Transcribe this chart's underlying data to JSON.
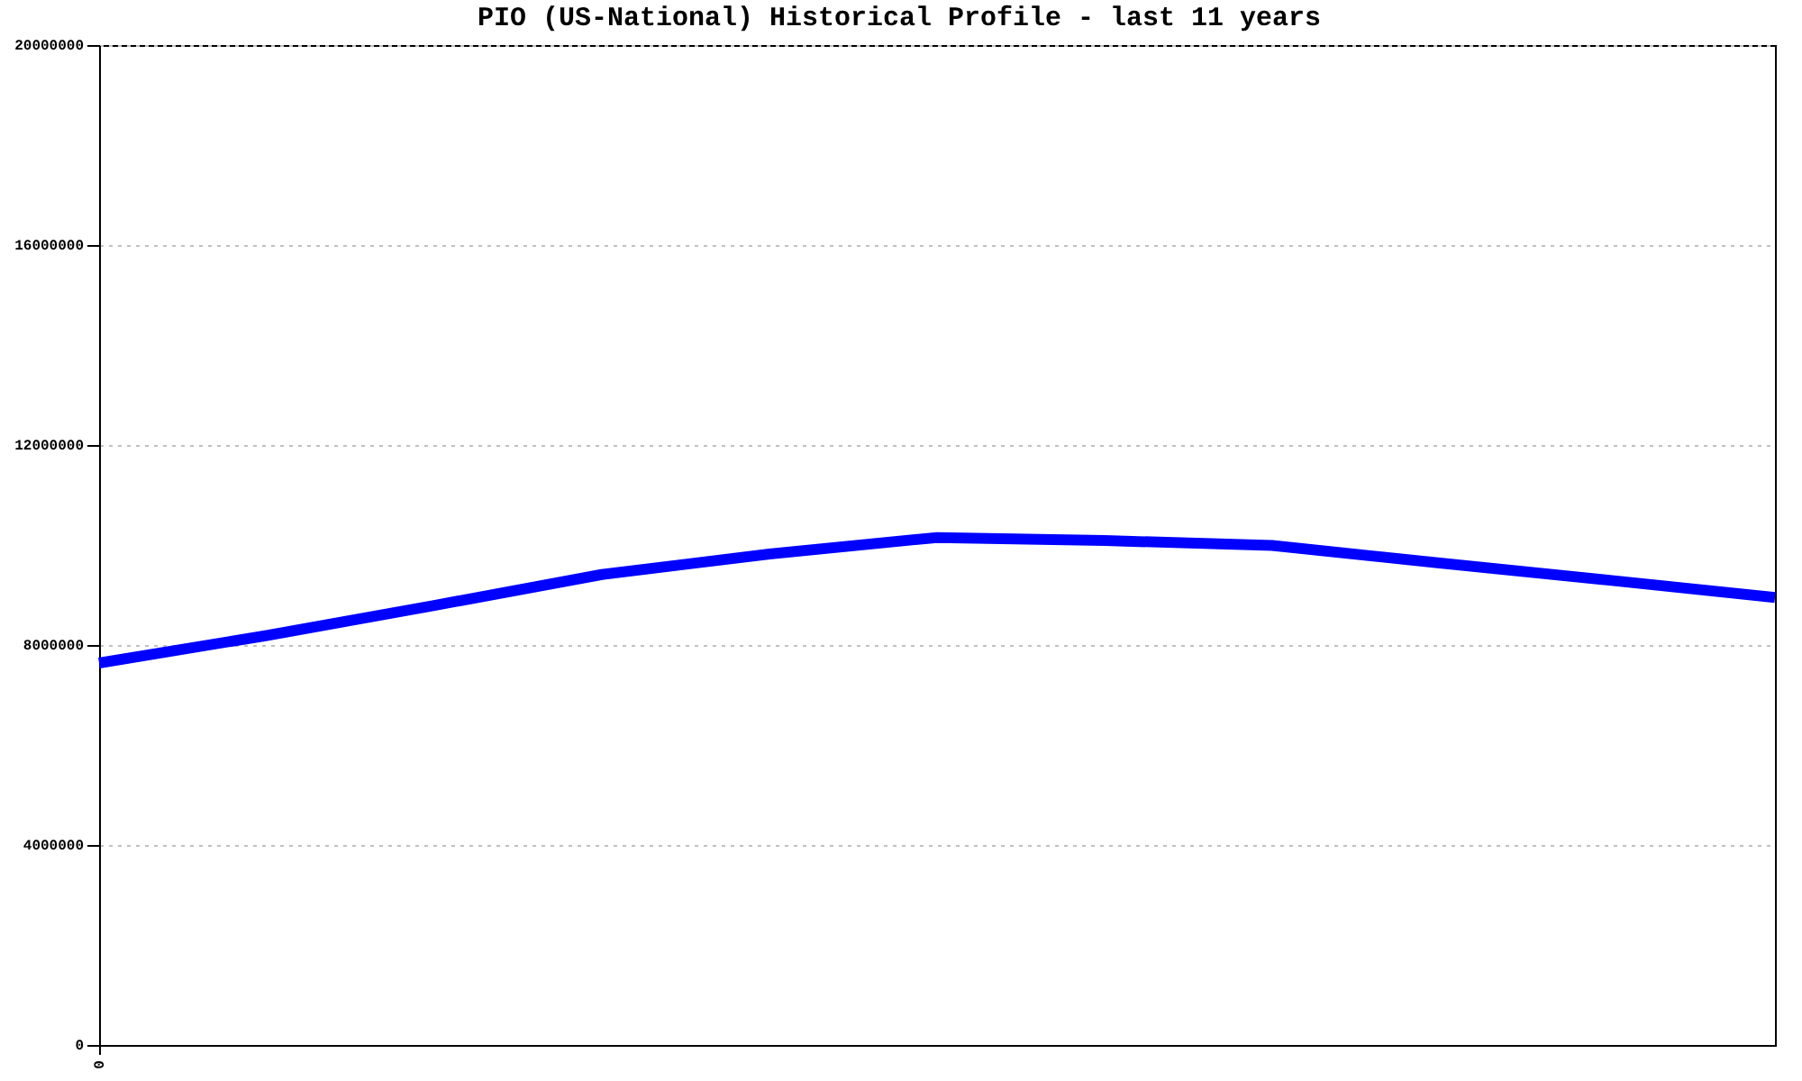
{
  "chart_data": {
    "type": "line",
    "title": "PIO (US-National) Historical Profile - last 11 years",
    "categories": [
      "0",
      null,
      null,
      null,
      null,
      null,
      null,
      null,
      null,
      null,
      null
    ],
    "series": [
      {
        "color": "#0000ff",
        "values": [
          7640000,
          8190000,
          8790000,
          9410000,
          9820000,
          10150000,
          10090000,
          9990000,
          9640000,
          9300000,
          8950000
        ]
      }
    ],
    "ylim": [
      0,
      20000000
    ],
    "yticks": [
      0,
      4000000,
      8000000,
      12000000,
      16000000,
      20000000
    ],
    "grid": "y",
    "legend": false
  }
}
